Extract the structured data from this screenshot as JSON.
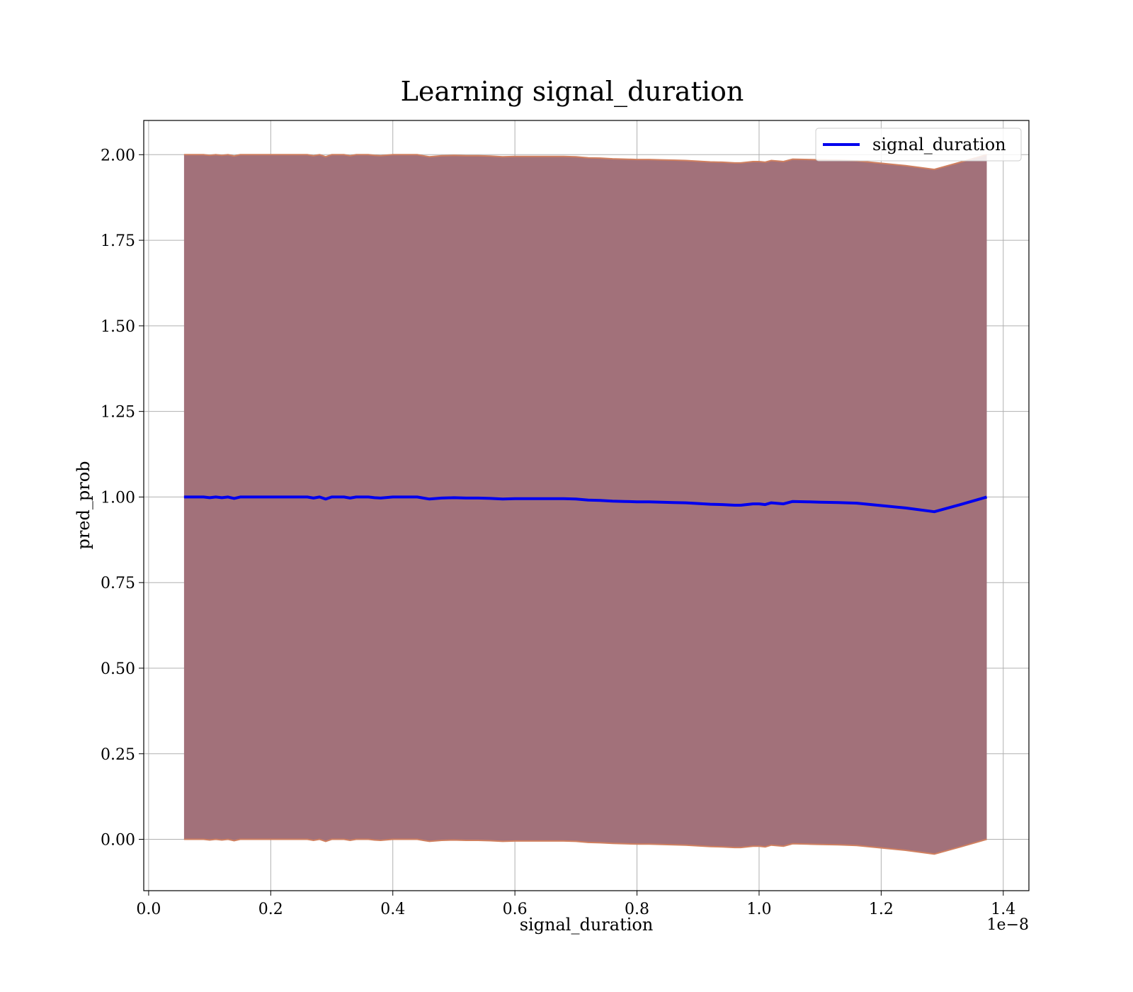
{
  "chart_data": {
    "type": "line",
    "title": "Learning signal_duration",
    "xlabel": "signal_duration",
    "ylabel": "pred_prob",
    "x_offset_label": "1e−8",
    "xlim": [
      -0.008,
      1.442
    ],
    "ylim": [
      -0.15,
      2.1
    ],
    "x_ticks": [
      0.0,
      0.2,
      0.4,
      0.6,
      0.8,
      1.0,
      1.2,
      1.4
    ],
    "x_tick_labels": [
      "0.0",
      "0.2",
      "0.4",
      "0.6",
      "0.8",
      "1.0",
      "1.2",
      "1.4"
    ],
    "y_ticks": [
      0.0,
      0.25,
      0.5,
      0.75,
      1.0,
      1.25,
      1.5,
      1.75,
      2.0
    ],
    "y_tick_labels": [
      "0.00",
      "0.25",
      "0.50",
      "0.75",
      "1.00",
      "1.25",
      "1.50",
      "1.75",
      "2.00"
    ],
    "grid": true,
    "legend_position": "upper right",
    "legend": [
      "signal_duration"
    ],
    "colors": {
      "line": "#0000ee",
      "band_fill": "#a2717a",
      "band_edge": "#d08060",
      "grid": "#b0b0b0"
    },
    "series": [
      {
        "name": "signal_duration",
        "x": [
          0.058,
          0.07,
          0.08,
          0.09,
          0.1,
          0.11,
          0.12,
          0.13,
          0.14,
          0.15,
          0.16,
          0.18,
          0.2,
          0.22,
          0.24,
          0.26,
          0.27,
          0.28,
          0.29,
          0.3,
          0.32,
          0.33,
          0.34,
          0.36,
          0.37,
          0.38,
          0.4,
          0.42,
          0.44,
          0.45,
          0.46,
          0.48,
          0.5,
          0.52,
          0.54,
          0.56,
          0.58,
          0.6,
          0.62,
          0.64,
          0.66,
          0.68,
          0.7,
          0.72,
          0.74,
          0.76,
          0.78,
          0.8,
          0.82,
          0.84,
          0.86,
          0.88,
          0.9,
          0.92,
          0.94,
          0.96,
          0.97,
          0.99,
          1.0,
          1.01,
          1.02,
          1.04,
          1.055,
          1.08,
          1.1,
          1.13,
          1.16,
          1.2,
          1.24,
          1.287,
          1.33,
          1.373
        ],
        "y": [
          1.0,
          1.0,
          1.0,
          1.0,
          0.998,
          1.0,
          0.998,
          1.0,
          0.996,
          1.0,
          1.0,
          1.0,
          1.0,
          1.0,
          1.0,
          1.0,
          0.997,
          1.0,
          0.994,
          1.0,
          1.0,
          0.997,
          1.0,
          1.0,
          0.998,
          0.997,
          1.0,
          1.0,
          1.0,
          0.997,
          0.994,
          0.997,
          0.998,
          0.997,
          0.997,
          0.996,
          0.994,
          0.995,
          0.995,
          0.995,
          0.995,
          0.995,
          0.994,
          0.991,
          0.99,
          0.988,
          0.987,
          0.986,
          0.986,
          0.985,
          0.984,
          0.983,
          0.981,
          0.979,
          0.978,
          0.976,
          0.976,
          0.98,
          0.98,
          0.978,
          0.983,
          0.98,
          0.987,
          0.986,
          0.985,
          0.984,
          0.982,
          0.975,
          0.968,
          0.957,
          0.978,
          1.0
        ]
      }
    ],
    "band": {
      "upper": [
        2.0,
        2.0,
        2.0,
        2.0,
        1.998,
        2.0,
        1.998,
        2.0,
        1.996,
        2.0,
        2.0,
        2.0,
        2.0,
        2.0,
        2.0,
        2.0,
        1.997,
        2.0,
        1.994,
        2.0,
        2.0,
        1.997,
        2.0,
        2.0,
        1.998,
        1.997,
        2.0,
        2.0,
        2.0,
        1.997,
        1.994,
        1.997,
        1.998,
        1.997,
        1.997,
        1.996,
        1.994,
        1.995,
        1.995,
        1.995,
        1.995,
        1.995,
        1.994,
        1.991,
        1.99,
        1.988,
        1.987,
        1.986,
        1.986,
        1.985,
        1.984,
        1.983,
        1.981,
        1.979,
        1.978,
        1.976,
        1.976,
        1.98,
        1.98,
        1.978,
        1.983,
        1.98,
        1.987,
        1.986,
        1.985,
        1.984,
        1.982,
        1.975,
        1.968,
        1.957,
        1.978,
        2.0
      ],
      "lower": [
        0.0,
        0.0,
        0.0,
        0.0,
        -0.002,
        0.0,
        -0.002,
        0.0,
        -0.004,
        0.0,
        0.0,
        0.0,
        0.0,
        0.0,
        0.0,
        0.0,
        -0.003,
        0.0,
        -0.006,
        0.0,
        0.0,
        -0.003,
        0.0,
        0.0,
        -0.002,
        -0.003,
        0.0,
        0.0,
        0.0,
        -0.003,
        -0.006,
        -0.003,
        -0.002,
        -0.003,
        -0.003,
        -0.004,
        -0.006,
        -0.005,
        -0.005,
        -0.005,
        -0.005,
        -0.005,
        -0.006,
        -0.009,
        -0.01,
        -0.012,
        -0.013,
        -0.014,
        -0.014,
        -0.015,
        -0.016,
        -0.017,
        -0.019,
        -0.021,
        -0.022,
        -0.024,
        -0.024,
        -0.02,
        -0.02,
        -0.022,
        -0.017,
        -0.02,
        -0.013,
        -0.014,
        -0.015,
        -0.016,
        -0.018,
        -0.025,
        -0.032,
        -0.043,
        -0.022,
        0.0
      ]
    }
  }
}
